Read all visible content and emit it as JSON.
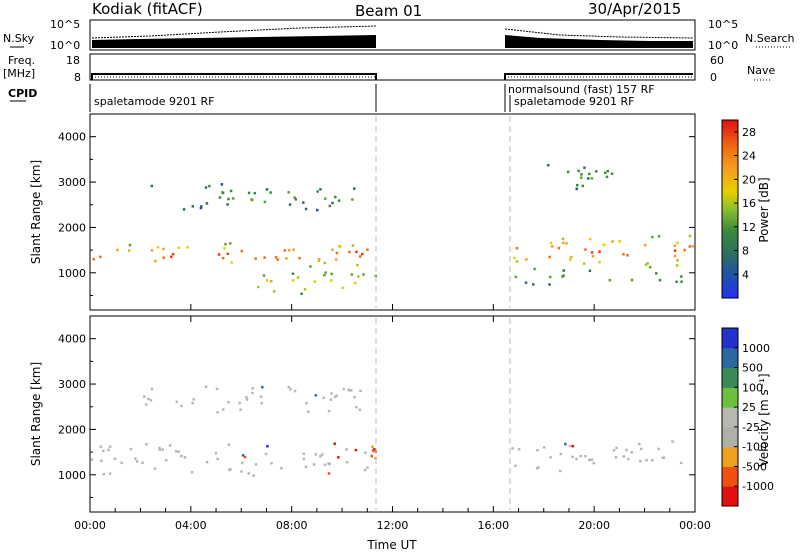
{
  "header": {
    "station": "Kodiak (fitACF)",
    "beam": "Beam 01",
    "date": "30/Apr/2015"
  },
  "left_labels": {
    "nsky": "N.Sky",
    "freq_top": "Freq.",
    "freq_unit": "[MHz]",
    "cpid": "CPID"
  },
  "right_labels": {
    "nsearch": "N.Search",
    "nave": "Nave"
  },
  "nsky_ticks": [
    "10^5",
    "10^0"
  ],
  "nsearch_ticks": [
    "10^5",
    "10^0"
  ],
  "freq_ticks": [
    "18",
    "8"
  ],
  "nave_ticks": [
    "60",
    "0"
  ],
  "cpid_labels": {
    "first": "spaletamode 9201 RF",
    "second_top": "normalsound (fast) 157 RF",
    "second_bottom": "spaletamode 9201 RF"
  },
  "colors": {
    "power_scale": [
      "#2233ee",
      "#1f4fb0",
      "#2e6e5e",
      "#3c8a3c",
      "#5aa62e",
      "#9ec820",
      "#e6d000",
      "#f4a020",
      "#f07010",
      "#ea3a10",
      "#e01010"
    ],
    "velocity_scale": [
      "#e01010",
      "#f05010",
      "#f0a020",
      "#b0b0a8",
      "#b8b8b0",
      "#6cc040",
      "#3a8a58",
      "#2a6aa0",
      "#2233cc"
    ],
    "gap_marker": "#bbbbbb"
  },
  "chart_data": [
    {
      "type": "heatmap",
      "title": "Power",
      "ylabel": "Slant Range [km]",
      "xlabel": "",
      "xlim_hours": [
        0,
        24
      ],
      "ylim": [
        180,
        4500
      ],
      "yticks": [
        "1000",
        "2000",
        "3000",
        "4000"
      ],
      "colorbar": {
        "label": "Power [dB]",
        "ticks": [
          "28",
          "24",
          "20",
          "16",
          "12",
          "8",
          "4"
        ],
        "range": [
          0,
          30
        ]
      },
      "data_gap_hours": [
        11.33,
        16.67
      ],
      "features": [
        {
          "name": "main band pre-gap",
          "hours": [
            0,
            11.3
          ],
          "range_km": [
            1150,
            1700
          ],
          "peak_db": 28
        },
        {
          "name": "upper band pre-gap",
          "hours": [
            2,
            11
          ],
          "range_km": [
            2400,
            3000
          ],
          "peak_db": 12
        },
        {
          "name": "lower patch",
          "hours": [
            6.5,
            11.3
          ],
          "range_km": [
            500,
            1100
          ],
          "peak_db": 20
        },
        {
          "name": "main band post-gap",
          "hours": [
            16.7,
            24
          ],
          "range_km": [
            1100,
            1900
          ],
          "peak_db": 26
        },
        {
          "name": "lower band post-gap",
          "hours": [
            16.7,
            24
          ],
          "range_km": [
            700,
            1100
          ],
          "peak_db": 12
        },
        {
          "name": "upper scatter post-gap",
          "hours": [
            17.5,
            21
          ],
          "range_km": [
            2800,
            3500
          ],
          "peak_db": 10
        }
      ]
    },
    {
      "type": "heatmap",
      "title": "Velocity",
      "ylabel": "Slant Range [km]",
      "xlabel": "Time UT",
      "xlim_hours": [
        0,
        24
      ],
      "ylim": [
        180,
        4500
      ],
      "yticks": [
        "1000",
        "2000",
        "3000",
        "4000"
      ],
      "xticks": [
        "00:00",
        "04:00",
        "08:00",
        "12:00",
        "16:00",
        "20:00",
        "00:00"
      ],
      "colorbar": {
        "label": "Velocity [m s⁻¹]",
        "ticks": [
          "1000",
          "500",
          "100",
          "25",
          "-25",
          "-100",
          "-500",
          "-1000"
        ]
      },
      "data_gap_hours": [
        11.33,
        16.67
      ],
      "features": [
        {
          "name": "ground scatter band pre-gap",
          "hours": [
            0,
            11.3
          ],
          "range_km": [
            1000,
            1700
          ],
          "velocity": 0
        },
        {
          "name": "ground scatter band post-gap",
          "hours": [
            16.7,
            24
          ],
          "range_km": [
            1100,
            1800
          ],
          "velocity": 0
        },
        {
          "name": "ionospheric patch",
          "hours": [
            9,
            11.3
          ],
          "range_km": [
            1100,
            1800
          ],
          "velocity": -100
        },
        {
          "name": "upper scatter pre-gap",
          "hours": [
            2,
            11
          ],
          "range_km": [
            2400,
            3000
          ],
          "velocity": 0
        }
      ]
    }
  ]
}
